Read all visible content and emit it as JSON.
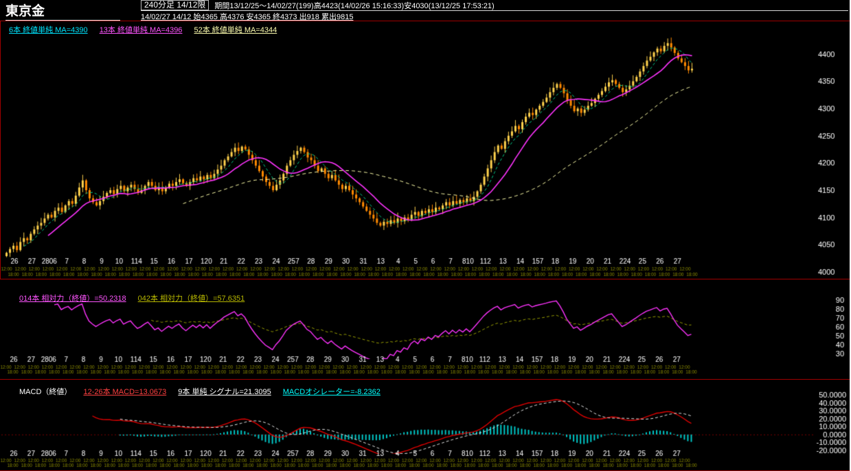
{
  "header": {
    "title": "東京金",
    "timeframe_box": "240分足 14/12限",
    "period_info": "期間13/12/25～14/02/27(199)高4423(14/02/26 15:16:33)安4030(13/12/25 17:53:21)",
    "quote_line": "14/02/27 14/12 始4365 高4376 安4365 終4373 出918 累出9815"
  },
  "main_chart": {
    "legend": [
      {
        "label": "6本 終値単純 MA=4390",
        "color": "#00e5ff"
      },
      {
        "label": "13本 終値単純 MA=4396",
        "color": "#ff55ff"
      },
      {
        "label": "52本 終値単純 MA=4344",
        "color": "#ffffb0"
      }
    ],
    "y_ticks": [
      "4400",
      "4350",
      "4300",
      "4250",
      "4200",
      "4150",
      "4100",
      "4050",
      "4000"
    ]
  },
  "rsi_panel": {
    "legend": [
      {
        "label": "014本 相対力（終値）=50.2318",
        "color": "#ff55ff"
      },
      {
        "label": "042本 相対力（終値）=57.6351",
        "color": "#b8b800"
      }
    ],
    "y_ticks": [
      "90",
      "80",
      "70",
      "60",
      "50",
      "40",
      "30"
    ]
  },
  "macd_panel": {
    "title": "MACD（終値）",
    "legend": [
      {
        "label": "12-26本 MACD=13.0673",
        "color": "#ff4040"
      },
      {
        "label": "9本 単純 シグナル=21.3095",
        "color": "#ffffff"
      },
      {
        "label": "MACDオシレーター=-8.2362",
        "color": "#00ffff"
      }
    ],
    "y_ticks": [
      "50.0000",
      "40.0000",
      "30.0000",
      "20.0000",
      "10.0000",
      "0.0000",
      "-10.0000",
      "-20.0000"
    ]
  },
  "x_axis": {
    "date_labels": [
      "26",
      "27",
      "2806",
      "7",
      "8",
      "9",
      "10",
      "114",
      "15",
      "16",
      "17",
      "120",
      "21",
      "22",
      "23",
      "24",
      "257",
      "28",
      "29",
      "30",
      "31",
      "13",
      "4",
      "5",
      "6",
      "7",
      "810",
      "112",
      "13",
      "14",
      "157",
      "18",
      "19",
      "20",
      "21",
      "224",
      "25",
      "26",
      "27"
    ],
    "time_labels": [
      "12:00",
      "18:00"
    ]
  },
  "colors": {
    "up": "#ffd24d",
    "down": "#ff8a00",
    "ma6": "#00cc88",
    "ma13": "#ff33ff",
    "ma52": "#ffffaa",
    "rsi14": "#ff33ff",
    "rsi42": "#9aa000",
    "macd": "#e00000",
    "signal": "#e8e8e8",
    "osc": "#00c8c8",
    "grid": "#7a0000",
    "axis_text": "#ffffff",
    "time_text": "#8b8b00",
    "panel_border": "#a00000"
  },
  "chart_data": {
    "type": "candlestick",
    "title": "東京金 240分足 14/12限",
    "bars": 199,
    "period": "13/12/25～14/02/27",
    "period_high": 4423,
    "period_low": 4030,
    "last_bar": {
      "open": 4365,
      "high": 4376,
      "low": 4365,
      "close": 4373,
      "volume": 918,
      "cum_volume": 9815
    },
    "y_range": [
      4000,
      4445
    ],
    "overlays": [
      {
        "type": "sma",
        "period": 6,
        "last": 4390
      },
      {
        "type": "sma",
        "period": 13,
        "last": 4396
      },
      {
        "type": "sma",
        "period": 52,
        "last": 4344
      }
    ],
    "indicators": [
      {
        "type": "rsi",
        "periods": [
          14,
          42
        ],
        "last_values": [
          50.2318,
          57.6351
        ],
        "y_ticks": [
          90,
          80,
          70,
          60,
          50,
          40,
          30
        ]
      },
      {
        "type": "macd",
        "fast": 12,
        "slow": 26,
        "signal_period": 9,
        "last_macd": 13.0673,
        "last_signal": 21.3095,
        "last_oscillator": -8.2362,
        "y_ticks": [
          50,
          40,
          30,
          20,
          10,
          0,
          -10,
          -20
        ]
      }
    ],
    "closes": [
      4035,
      4042,
      4048,
      4040,
      4055,
      4062,
      4058,
      4070,
      4078,
      4085,
      4090,
      4098,
      4105,
      4100,
      4112,
      4118,
      4110,
      4122,
      4130,
      4125,
      4140,
      4155,
      4168,
      4150,
      4135,
      4128,
      4122,
      4130,
      4138,
      4145,
      4150,
      4143,
      4152,
      4158,
      4148,
      4155,
      4160,
      4152,
      4145,
      4150,
      4158,
      4165,
      4158,
      4150,
      4155,
      4148,
      4155,
      4162,
      4158,
      4165,
      4170,
      4163,
      4158,
      4165,
      4172,
      4168,
      4175,
      4170,
      4178,
      4172,
      4180,
      4188,
      4195,
      4205,
      4212,
      4220,
      4228,
      4222,
      4230,
      4225,
      4215,
      4205,
      4195,
      4185,
      4175,
      4165,
      4158,
      4150,
      4160,
      4168,
      4180,
      4195,
      4205,
      4215,
      4222,
      4228,
      4220,
      4210,
      4205,
      4195,
      4185,
      4190,
      4180,
      4172,
      4178,
      4168,
      4160,
      4152,
      4158,
      4150,
      4142,
      4135,
      4128,
      4120,
      4112,
      4105,
      4098,
      4090,
      4085,
      4092,
      4088,
      4095,
      4090,
      4098,
      4093,
      4100,
      4095,
      4105,
      4110,
      4103,
      4112,
      4108,
      4115,
      4110,
      4118,
      4115,
      4122,
      4128,
      4122,
      4130,
      4125,
      4132,
      4128,
      4135,
      4130,
      4138,
      4148,
      4160,
      4175,
      4190,
      4205,
      4220,
      4232,
      4226,
      4240,
      4250,
      4258,
      4268,
      4262,
      4275,
      4285,
      4292,
      4288,
      4298,
      4305,
      4312,
      4320,
      4330,
      4338,
      4345,
      4338,
      4328,
      4315,
      4305,
      4295,
      4300,
      4292,
      4298,
      4305,
      4310,
      4318,
      4325,
      4332,
      4340,
      4348,
      4352,
      4345,
      4338,
      4330,
      4335,
      4342,
      4350,
      4358,
      4368,
      4378,
      4388,
      4395,
      4403,
      4410,
      4405,
      4415,
      4420,
      4412,
      4402,
      4392,
      4385,
      4378,
      4370,
      4373
    ]
  }
}
